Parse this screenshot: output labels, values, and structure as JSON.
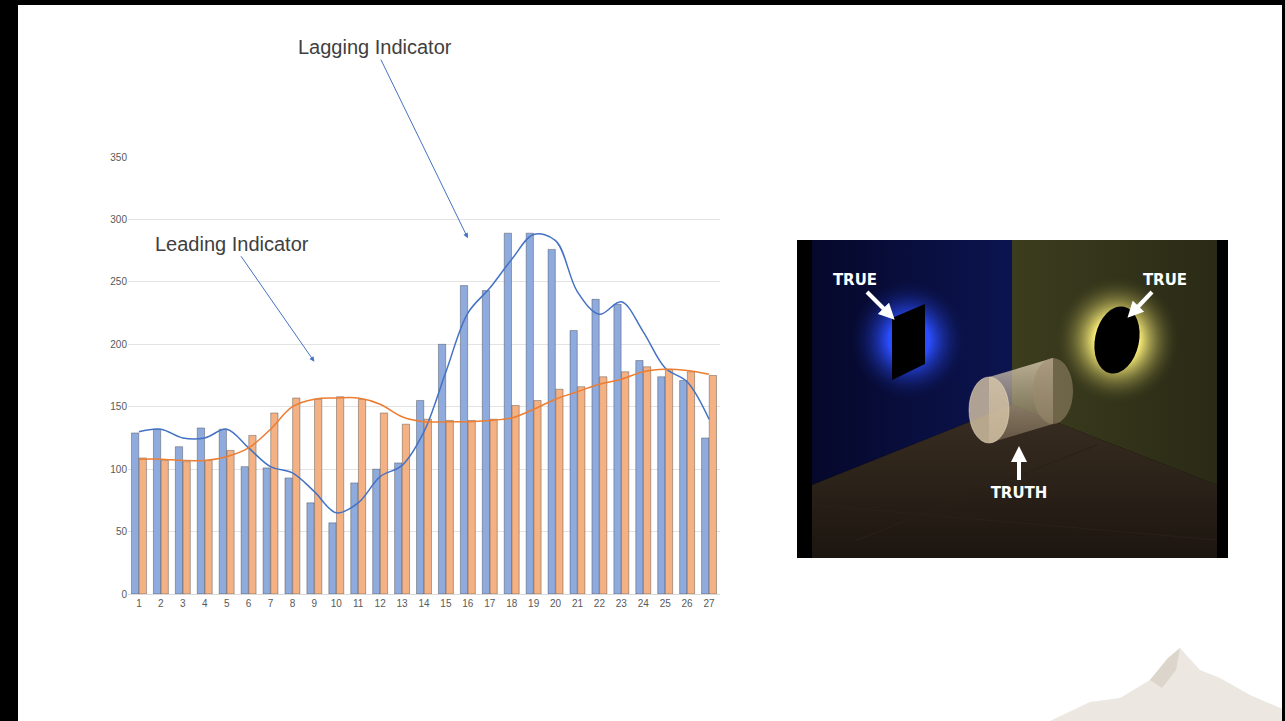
{
  "chart_data": {
    "type": "bar",
    "categories": [
      "1",
      "2",
      "3",
      "4",
      "5",
      "6",
      "7",
      "8",
      "9",
      "10",
      "11",
      "12",
      "13",
      "14",
      "15",
      "16",
      "17",
      "18",
      "19",
      "20",
      "21",
      "22",
      "23",
      "24",
      "25",
      "26",
      "27"
    ],
    "ylim": [
      0,
      350
    ],
    "yticks": [
      0,
      50,
      100,
      150,
      200,
      250,
      300,
      350
    ],
    "grid": true,
    "series": [
      {
        "type": "bar",
        "color": "#8faadc",
        "values": [
          129,
          132,
          118,
          133,
          132,
          102,
          101,
          93,
          73,
          57,
          89,
          100,
          105,
          155,
          200,
          247,
          243,
          289,
          289,
          276,
          211,
          236,
          232,
          187,
          174,
          171,
          125
        ]
      },
      {
        "type": "bar",
        "color": "#f4b183",
        "values": [
          109,
          107,
          106,
          107,
          115,
          127,
          145,
          157,
          156,
          158,
          156,
          145,
          136,
          140,
          139,
          139,
          140,
          151,
          155,
          164,
          166,
          174,
          178,
          182,
          180,
          178,
          175
        ]
      },
      {
        "type": "line",
        "color": "#4472c4",
        "line_style": "spline",
        "values": [
          130,
          132,
          125,
          125,
          132,
          117,
          102,
          97,
          82,
          65,
          73,
          94,
          103,
          130,
          178,
          225,
          245,
          268,
          288,
          283,
          242,
          224,
          234,
          210,
          181,
          170,
          140
        ]
      },
      {
        "type": "line",
        "color": "#ed7d31",
        "line_style": "spline",
        "values": [
          108,
          108,
          107,
          107,
          110,
          117,
          132,
          150,
          156,
          157,
          157,
          152,
          142,
          138,
          138,
          138,
          139,
          141,
          148,
          156,
          162,
          168,
          172,
          178,
          180,
          179,
          176
        ]
      }
    ],
    "annotations": [
      {
        "text": "Lagging Indicator",
        "category": "16",
        "value": 285
      },
      {
        "text": "Leading Indicator",
        "category": "9",
        "value": 186
      }
    ]
  },
  "diagram": {
    "left_label": "TRUE",
    "right_label": "TRUE",
    "object_label": "TRUTH"
  }
}
